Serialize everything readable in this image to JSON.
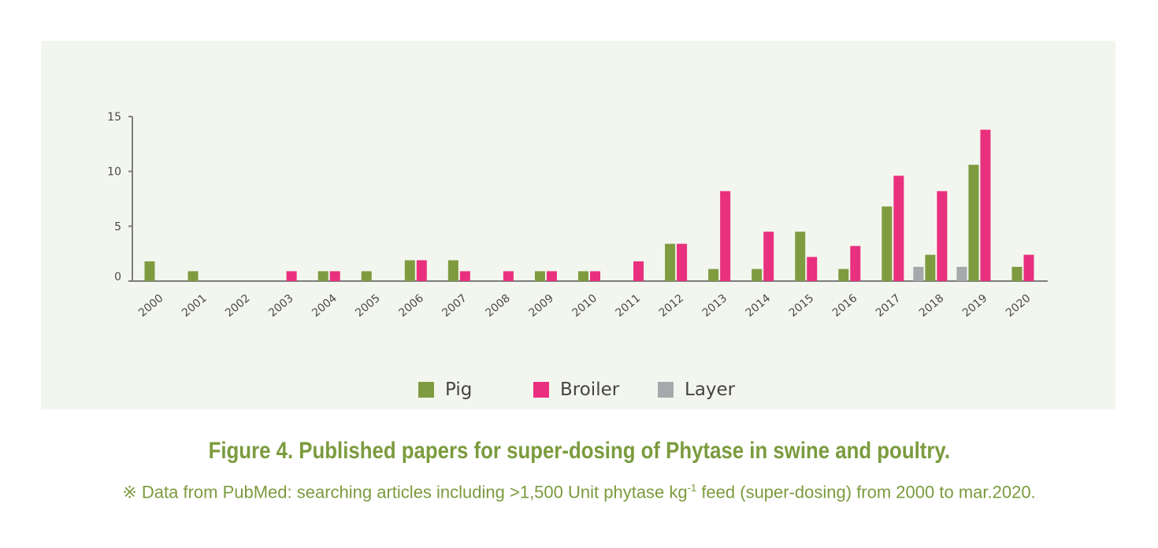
{
  "chart_data": {
    "type": "bar",
    "title": "",
    "xlabel": "",
    "ylabel": "",
    "ylim": [
      0,
      15
    ],
    "yticks": [
      0,
      5,
      10,
      15
    ],
    "grid": false,
    "legend_position": "bottom",
    "categories": [
      "2000",
      "2001",
      "2002",
      "2003",
      "2004",
      "2005",
      "2006",
      "2007",
      "2008",
      "2009",
      "2010",
      "2011",
      "2012",
      "2013",
      "2014",
      "2015",
      "2016",
      "2017",
      "2018",
      "2019",
      "2020"
    ],
    "series": [
      {
        "name": "Pig",
        "color": "#7f9b40",
        "values": [
          1.8,
          0.9,
          0,
          0,
          0.9,
          0.9,
          1.9,
          1.9,
          0,
          0.9,
          0.9,
          0,
          3.4,
          1.1,
          1.1,
          4.5,
          1.1,
          6.8,
          2.4,
          10.6,
          1.3
        ]
      },
      {
        "name": "Broiler",
        "color": "#e9307e",
        "values": [
          0,
          0,
          0,
          0.9,
          0.9,
          0,
          1.9,
          0.9,
          0.9,
          0.9,
          0.9,
          1.8,
          3.4,
          8.2,
          4.5,
          2.2,
          3.2,
          9.6,
          8.2,
          13.8,
          2.4
        ]
      },
      {
        "name": "Layer",
        "color": "#a7a8ab",
        "values": [
          0,
          0,
          0,
          0,
          0,
          0,
          0,
          0,
          0,
          0,
          0,
          0,
          0,
          0,
          0,
          0,
          0,
          0,
          1.3,
          1.3,
          0
        ]
      }
    ]
  },
  "caption": {
    "title": "Figure 4. Published papers for super-dosing of Phytase in swine and poultry.",
    "note_before": "※ Data from PubMed: searching articles including >1,500 Unit phytase kg",
    "note_sup": "-1",
    "note_after": " feed (super-dosing) from 2000 to mar.2020."
  },
  "colors": {
    "panel_bg": "#f3f6ee",
    "caption": "#7b9b3e",
    "axis": "#7d7d7d"
  }
}
